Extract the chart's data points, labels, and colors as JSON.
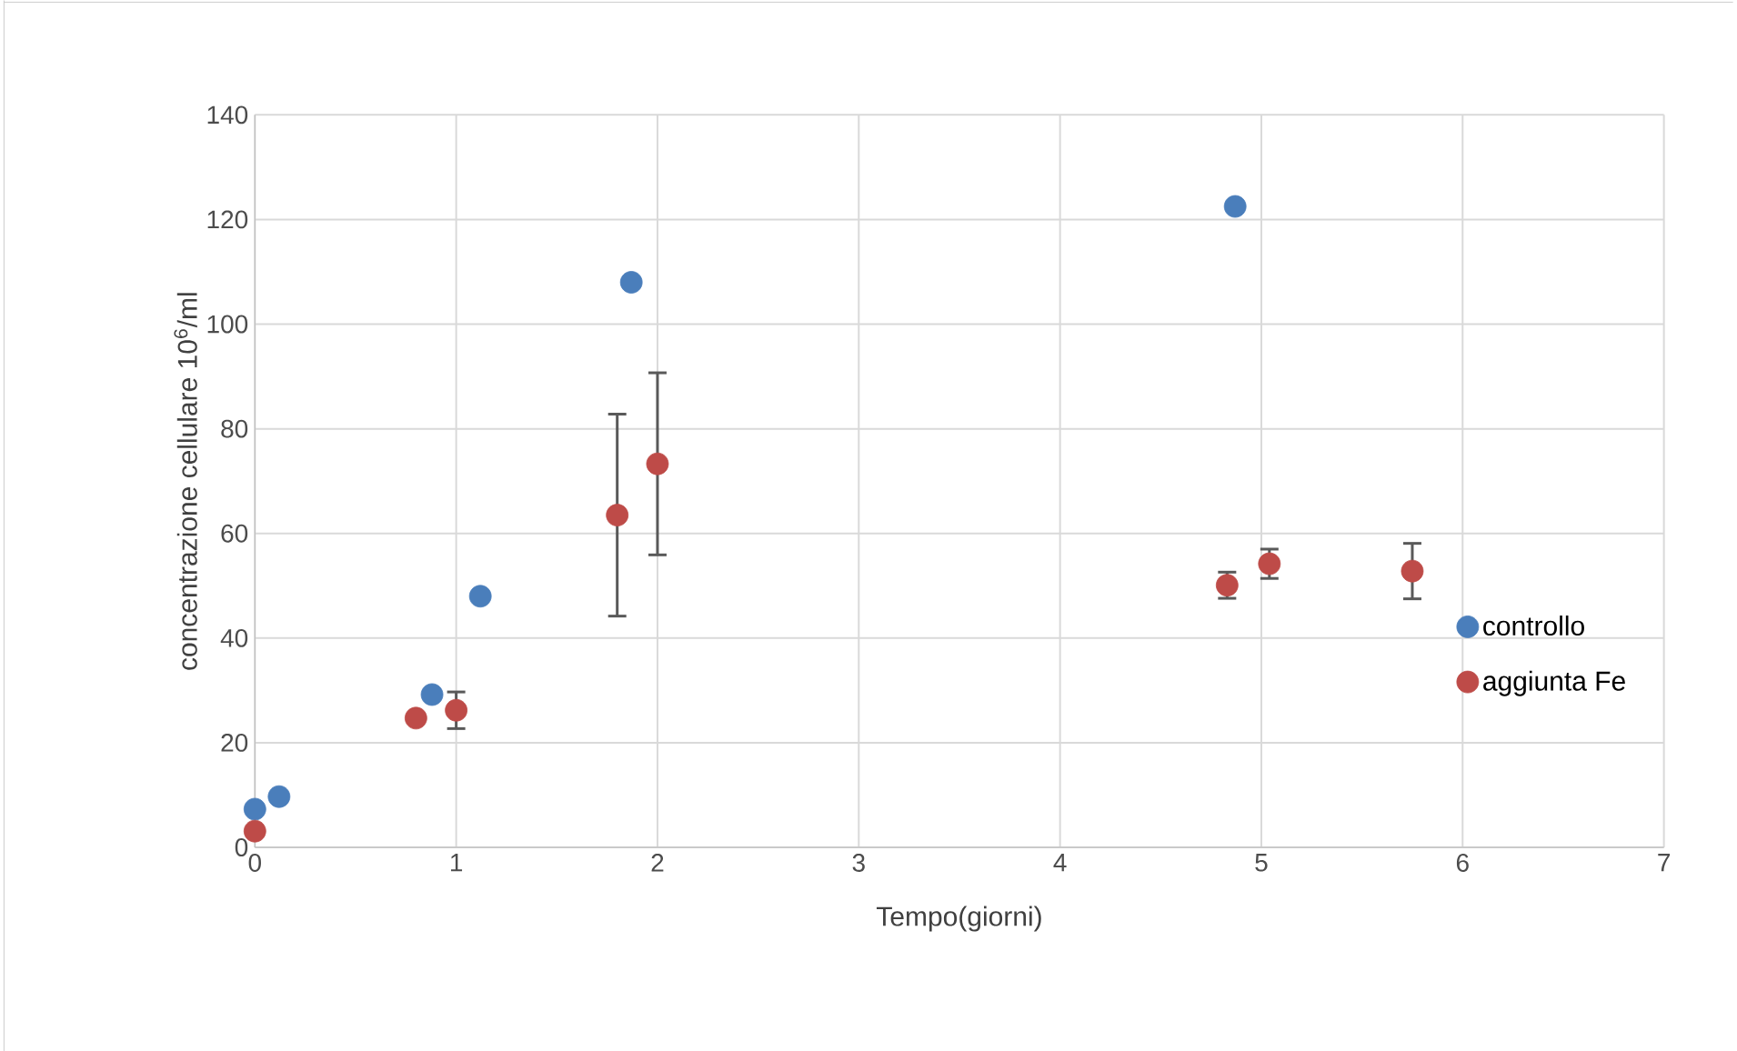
{
  "chart_data": {
    "type": "scatter",
    "xlabel": "Tempo(giorni)",
    "ylabel": "concentrazione cellulare 10$^{6}$/ml",
    "xlim": [
      0,
      7
    ],
    "ylim": [
      0,
      140
    ],
    "xticks": [
      0,
      1,
      2,
      3,
      4,
      5,
      6,
      7
    ],
    "yticks": [
      0,
      20,
      40,
      60,
      80,
      100,
      120,
      140
    ],
    "grid": true,
    "legend": "right",
    "marker": "circle",
    "series": [
      {
        "name": "controllo",
        "color": "#4a7ebb",
        "x": [
          0,
          0.12,
          0.88,
          1.12,
          1.87,
          4.87
        ],
        "values": [
          7.3,
          9.7,
          29.2,
          48,
          108,
          122.5
        ]
      },
      {
        "name": "aggiunta Fe",
        "color": "#be4b48",
        "x": [
          0,
          0.8,
          1,
          1.8,
          2,
          4.83,
          5.04,
          5.75
        ],
        "values": [
          3.1,
          24.7,
          26.2,
          63.5,
          73.3,
          50.1,
          54.2,
          52.8
        ],
        "errors": [
          null,
          null,
          3.5,
          19.3,
          17.4,
          2.5,
          2.8,
          5.3
        ]
      }
    ]
  }
}
